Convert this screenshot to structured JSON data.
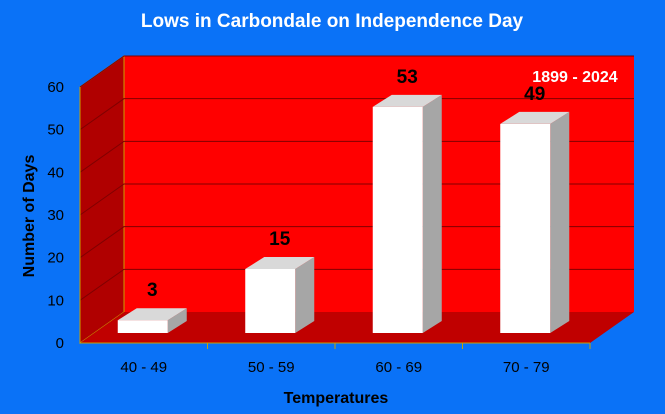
{
  "chart_data": {
    "type": "bar",
    "title": "Lows in Carbondale on Independence Day",
    "annotation": "1899 - 2024",
    "xlabel": "Temperatures",
    "ylabel": "Number of Days",
    "categories": [
      "40 - 49",
      "50 - 59",
      "60 - 69",
      "70 - 79"
    ],
    "values": [
      3,
      15,
      53,
      49
    ],
    "data_labels": [
      "3",
      "15",
      "53",
      "49"
    ],
    "ylim": [
      0,
      60
    ],
    "yticks": [
      0,
      10,
      20,
      30,
      40,
      50,
      60
    ],
    "grid": true,
    "style": "3d",
    "legend": "none",
    "colors": {
      "background": "#0a72f7",
      "back_wall": "#ff0000",
      "side_wall": "#b00000",
      "floor": "#c00000",
      "gridline": "#800000",
      "bar_front": "#ffffff",
      "bar_side": "#a6a6a6",
      "bar_top": "#d9d9d9",
      "title_text": "#ffffff"
    }
  }
}
